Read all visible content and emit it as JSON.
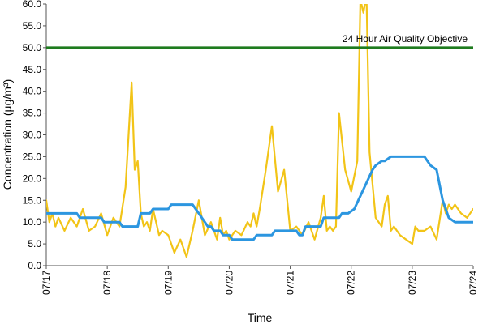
{
  "chart_data": {
    "type": "line",
    "title": "",
    "xlabel": "Time",
    "ylabel": "Concentration (µg/m³)",
    "ylim": [
      0,
      60
    ],
    "y_ticks": [
      "0.0",
      "5.0",
      "10.0",
      "15.0",
      "20.0",
      "25.0",
      "30.0",
      "35.0",
      "40.0",
      "45.0",
      "50.0",
      "55.0",
      "60.0"
    ],
    "x_ticks": [
      "07/17",
      "07/18",
      "07/19",
      "07/20",
      "07/21",
      "07/22",
      "07/23",
      "07/24"
    ],
    "grid": false,
    "legend": "none",
    "objective": {
      "label": "24 Hour Air Quality Objective",
      "value": 50,
      "color": "#1e7b1e"
    },
    "series": [
      {
        "color": "#f2c417",
        "x": [
          0,
          0.05,
          0.1,
          0.15,
          0.2,
          0.3,
          0.4,
          0.5,
          0.6,
          0.7,
          0.8,
          0.9,
          1.0,
          1.1,
          1.2,
          1.3,
          1.4,
          1.45,
          1.5,
          1.55,
          1.6,
          1.65,
          1.7,
          1.75,
          1.8,
          1.85,
          1.9,
          2.0,
          2.1,
          2.2,
          2.3,
          2.4,
          2.5,
          2.6,
          2.7,
          2.8,
          2.85,
          2.9,
          2.95,
          3.0,
          3.1,
          3.2,
          3.3,
          3.35,
          3.4,
          3.45,
          3.5,
          3.6,
          3.7,
          3.8,
          3.9,
          4.0,
          4.1,
          4.2,
          4.3,
          4.4,
          4.5,
          4.55,
          4.6,
          4.65,
          4.7,
          4.75,
          4.8,
          4.9,
          5.0,
          5.1,
          5.15,
          5.2,
          5.25,
          5.3,
          5.4,
          5.5,
          5.55,
          5.6,
          5.65,
          5.7,
          5.8,
          5.9,
          6.0,
          6.05,
          6.1,
          6.2,
          6.3,
          6.4,
          6.5,
          6.55,
          6.6,
          6.65,
          6.7,
          6.8,
          6.9,
          7.0
        ],
        "values": [
          15,
          10,
          12,
          9,
          11,
          8,
          11,
          9,
          13,
          8,
          9,
          12,
          7,
          11,
          9,
          18,
          42,
          22,
          24,
          12,
          9,
          10,
          8,
          13,
          10,
          7,
          8,
          7,
          3,
          6,
          2,
          8,
          15,
          7,
          10,
          6,
          11,
          7,
          8,
          6,
          8,
          7,
          10,
          9,
          12,
          9,
          13,
          22,
          32,
          17,
          22,
          8,
          9,
          7,
          10,
          6,
          11,
          16,
          8,
          9,
          8,
          9,
          35,
          22,
          17,
          24,
          61,
          58,
          62,
          26,
          11,
          9,
          14,
          16,
          8,
          9,
          7,
          6,
          5,
          9,
          8,
          8,
          9,
          6,
          15,
          12,
          14,
          13,
          14,
          12,
          11,
          13
        ]
      },
      {
        "color": "#2c96e0",
        "x": [
          0,
          0.5,
          0.55,
          0.9,
          0.95,
          1.2,
          1.25,
          1.5,
          1.55,
          1.7,
          1.75,
          2.0,
          2.05,
          2.4,
          2.5,
          2.6,
          2.65,
          2.7,
          2.75,
          2.85,
          2.9,
          3.0,
          3.05,
          3.4,
          3.45,
          3.7,
          3.75,
          3.9,
          4.0,
          4.1,
          4.15,
          4.2,
          4.25,
          4.5,
          4.55,
          4.6,
          4.65,
          4.8,
          4.85,
          4.95,
          5.05,
          5.15,
          5.25,
          5.35,
          5.4,
          5.5,
          5.55,
          5.65,
          6.2,
          6.3,
          6.4,
          6.5,
          6.6,
          6.7,
          6.8,
          7.0
        ],
        "values": [
          12,
          12,
          11,
          11,
          10,
          10,
          9,
          9,
          12,
          12,
          13,
          13,
          14,
          14,
          12,
          10,
          9,
          9,
          8,
          8,
          7,
          7,
          6,
          6,
          7,
          7,
          8,
          8,
          8,
          8,
          7,
          7,
          9,
          9,
          11,
          11,
          11,
          11,
          12,
          12,
          13,
          16,
          19,
          22,
          23,
          24,
          24,
          25,
          25,
          23,
          22,
          15,
          11,
          10,
          10,
          10
        ]
      }
    ]
  }
}
